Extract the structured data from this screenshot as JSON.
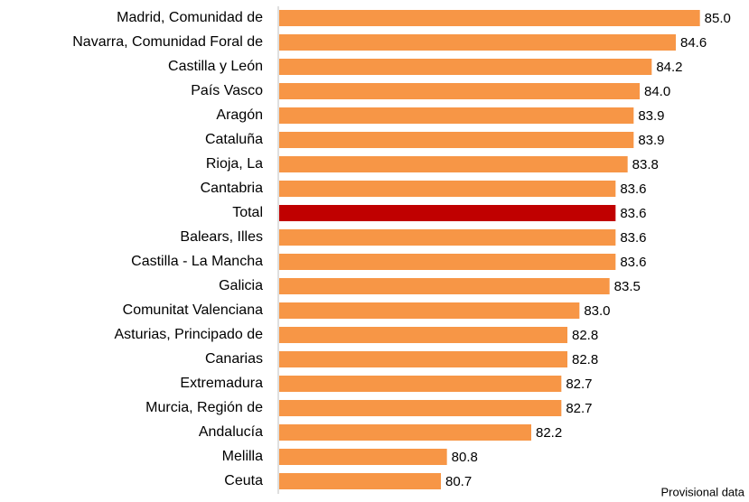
{
  "chart_data": {
    "type": "barh",
    "categories": [
      "Madrid, Comunidad de",
      "Navarra, Comunidad Foral de",
      "Castilla y León",
      "País Vasco",
      "Aragón",
      "Cataluña",
      "Rioja, La",
      "Cantabria",
      "Total",
      "Balears, Illes",
      "Castilla - La Mancha",
      "Galicia",
      "Comunitat Valenciana",
      "Asturias, Principado de",
      "Canarias",
      "Extremadura",
      "Murcia, Región de",
      "Andalucía",
      "Melilla",
      "Ceuta"
    ],
    "values": [
      85.0,
      84.6,
      84.2,
      84.0,
      83.9,
      83.9,
      83.8,
      83.6,
      83.6,
      83.6,
      83.6,
      83.5,
      83.0,
      82.8,
      82.8,
      82.7,
      82.7,
      82.2,
      80.8,
      80.7
    ],
    "value_labels": [
      "85.0",
      "84.6",
      "84.2",
      "84.0",
      "83.9",
      "83.9",
      "83.8",
      "83.6",
      "83.6",
      "83.6",
      "83.6",
      "83.5",
      "83.0",
      "82.8",
      "82.8",
      "82.7",
      "82.7",
      "82.2",
      "80.8",
      "80.7"
    ],
    "colors": [
      "#f79646",
      "#f79646",
      "#f79646",
      "#f79646",
      "#f79646",
      "#f79646",
      "#f79646",
      "#f79646",
      "#c00000",
      "#f79646",
      "#f79646",
      "#f79646",
      "#f79646",
      "#f79646",
      "#f79646",
      "#f79646",
      "#f79646",
      "#f79646",
      "#f79646",
      "#f79646"
    ],
    "xlim": [
      78,
      85.5
    ],
    "annotation": "Provisional data"
  }
}
